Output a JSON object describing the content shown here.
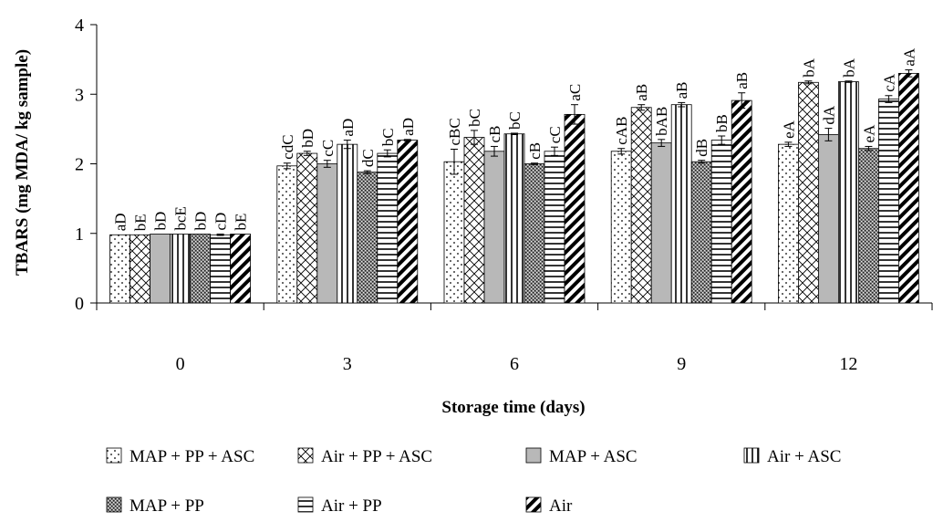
{
  "chart_data": {
    "type": "bar",
    "title": "",
    "xlabel": "Storage time (days)",
    "ylabel": "TBARS (mg MDA/ kg sample)",
    "ylim": [
      0,
      4
    ],
    "yticks": [
      "0",
      "1",
      "2",
      "3",
      "4"
    ],
    "categories": [
      "0",
      "3",
      "6",
      "9",
      "12"
    ],
    "grid": false,
    "legend_position": "bottom",
    "series": [
      {
        "name": "MAP + PP + ASC",
        "pattern": "dots",
        "values": [
          0.98,
          1.97,
          2.03,
          2.18,
          2.28
        ],
        "errors": [
          0.0,
          0.04,
          0.18,
          0.04,
          0.03
        ],
        "labels": [
          "aD",
          "cdC",
          "cBC",
          "cAB",
          "eA"
        ]
      },
      {
        "name": "Air + PP + ASC",
        "pattern": "crosshatch",
        "values": [
          0.98,
          2.15,
          2.38,
          2.81,
          3.17
        ],
        "errors": [
          0.0,
          0.03,
          0.1,
          0.04,
          0.02
        ],
        "labels": [
          "bE",
          "bD",
          "bC",
          "aB",
          "bA"
        ]
      },
      {
        "name": "MAP + ASC",
        "pattern": "solid-gray",
        "values": [
          0.99,
          2.0,
          2.18,
          2.3,
          2.42
        ],
        "errors": [
          0.0,
          0.05,
          0.07,
          0.05,
          0.09
        ],
        "labels": [
          "bD",
          "cC",
          "cB",
          "bAB",
          "dA"
        ]
      },
      {
        "name": "Air + ASC",
        "pattern": "vertical-lines",
        "values": [
          0.99,
          2.28,
          2.43,
          2.85,
          3.18
        ],
        "errors": [
          0.0,
          0.06,
          0.01,
          0.03,
          0.01
        ],
        "labels": [
          "bcE",
          "aD",
          "bC",
          "aB",
          "bA"
        ]
      },
      {
        "name": "MAP + PP",
        "pattern": "dense-dots",
        "values": [
          0.99,
          1.88,
          2.0,
          2.03,
          2.22
        ],
        "errors": [
          0.0,
          0.02,
          0.01,
          0.02,
          0.03
        ],
        "labels": [
          "bD",
          "dC",
          "cB",
          "dB",
          "eA"
        ]
      },
      {
        "name": "Air + PP",
        "pattern": "horizontal-lines",
        "values": [
          0.98,
          2.15,
          2.18,
          2.34,
          2.93
        ],
        "errors": [
          0.01,
          0.05,
          0.06,
          0.06,
          0.05
        ],
        "labels": [
          "cD",
          "bC",
          "cC",
          "bB",
          "cA"
        ]
      },
      {
        "name": "Air",
        "pattern": "diagonal-stripes",
        "values": [
          0.99,
          2.34,
          2.71,
          2.91,
          3.3
        ],
        "errors": [
          0.0,
          0.01,
          0.14,
          0.11,
          0.05
        ],
        "labels": [
          "bE",
          "aD",
          "aC",
          "aB",
          "aA"
        ]
      }
    ]
  }
}
